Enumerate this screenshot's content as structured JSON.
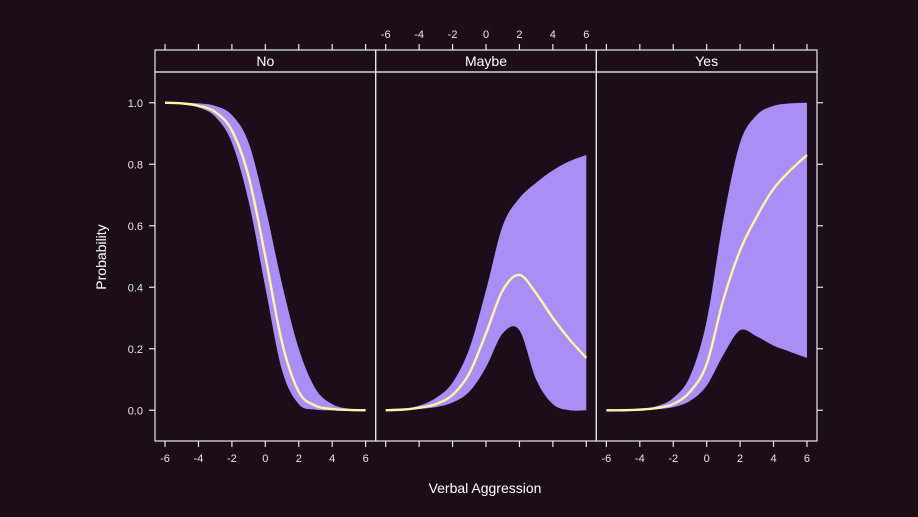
{
  "colors": {
    "background": "#1b0e1a",
    "band": "#a98ff5",
    "line": "#fff3a6",
    "axis": "#e8e8e8"
  },
  "chart_data": {
    "type": "area",
    "title": "",
    "xlabel": "Verbal Aggression",
    "ylabel": "Probability",
    "xlim": [
      -6.6,
      6.6
    ],
    "ylim": [
      -0.1,
      1.1
    ],
    "xticks": [
      "-6",
      "-4",
      "-2",
      "0",
      "2",
      "4",
      "6"
    ],
    "yticks": [
      "0.0",
      "0.2",
      "0.4",
      "0.6",
      "0.8",
      "1.0"
    ],
    "grid": false,
    "panels": [
      {
        "name": "No",
        "x": [
          -6,
          -5,
          -4,
          -3,
          -2,
          -1,
          0,
          1,
          2,
          3,
          4,
          5,
          6
        ],
        "fit": [
          1.0,
          0.998,
          0.99,
          0.97,
          0.91,
          0.76,
          0.5,
          0.22,
          0.06,
          0.015,
          0.004,
          0.001,
          0.0
        ],
        "lower": [
          1.0,
          0.997,
          0.985,
          0.955,
          0.87,
          0.68,
          0.4,
          0.13,
          0.02,
          0.002,
          0.0,
          0.0,
          0.0
        ],
        "upper": [
          1.0,
          1.0,
          0.998,
          0.99,
          0.96,
          0.87,
          0.66,
          0.41,
          0.2,
          0.07,
          0.02,
          0.005,
          0.001
        ]
      },
      {
        "name": "Maybe",
        "x": [
          -6,
          -5,
          -4,
          -3,
          -2,
          -1,
          0,
          1,
          2,
          3,
          4,
          5,
          6
        ],
        "fit": [
          0.0,
          0.002,
          0.008,
          0.02,
          0.05,
          0.12,
          0.25,
          0.39,
          0.44,
          0.38,
          0.3,
          0.23,
          0.17
        ],
        "lower": [
          0.0,
          0.001,
          0.004,
          0.01,
          0.025,
          0.06,
          0.14,
          0.25,
          0.26,
          0.1,
          0.02,
          0.0,
          0.0
        ],
        "upper": [
          0.0,
          0.004,
          0.015,
          0.04,
          0.09,
          0.2,
          0.39,
          0.6,
          0.69,
          0.74,
          0.78,
          0.81,
          0.83
        ]
      },
      {
        "name": "Yes",
        "x": [
          -6,
          -5,
          -4,
          -3,
          -2,
          -1,
          0,
          1,
          2,
          3,
          4,
          5,
          6
        ],
        "fit": [
          0.0,
          0.0,
          0.002,
          0.007,
          0.02,
          0.06,
          0.15,
          0.36,
          0.52,
          0.63,
          0.72,
          0.78,
          0.83
        ],
        "lower": [
          0.0,
          0.0,
          0.001,
          0.003,
          0.01,
          0.03,
          0.08,
          0.18,
          0.26,
          0.24,
          0.21,
          0.19,
          0.17
        ],
        "upper": [
          0.0,
          0.001,
          0.004,
          0.013,
          0.04,
          0.11,
          0.29,
          0.62,
          0.87,
          0.96,
          0.99,
          0.998,
          1.0
        ]
      }
    ]
  }
}
